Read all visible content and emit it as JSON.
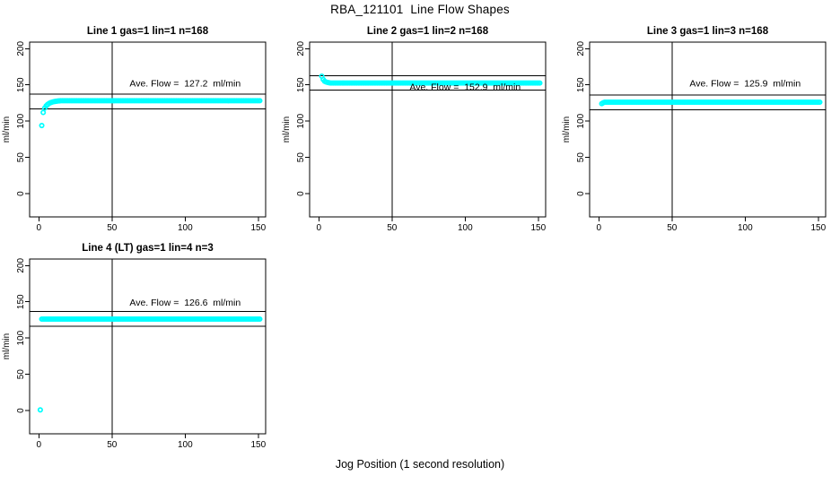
{
  "window": {
    "title": "RBA_121101  Line Flow Shapes",
    "xlabel": "Jog Position (1 second resolution)"
  },
  "colors": {
    "marker": "#00ffff",
    "axis": "#000000",
    "background": "#ffffff"
  },
  "chart_data": [
    {
      "type": "scatter",
      "title": "Line 1 gas=1 lin=1 n=168",
      "ylabel": "ml/min",
      "annotation": "Ave. Flow =  127.2  ml/min",
      "annotation_xy": [
        100,
        152
      ],
      "ave_flow_ml_min": 127.2,
      "n_points": 168,
      "marker": "open-circle",
      "ref_lines_y": [
        117.2,
        137.2
      ],
      "vline_x": 50,
      "xticks": [
        0,
        50,
        100,
        150
      ],
      "yticks": [
        0,
        50,
        100,
        150,
        200
      ],
      "xlim": [
        -6.3,
        155
      ],
      "ylim": [
        -32,
        209
      ],
      "grid": false,
      "points_initial": [
        [
          2,
          94
        ],
        [
          3,
          112
        ],
        [
          4,
          118
        ],
        [
          5,
          121
        ],
        [
          6,
          123
        ],
        [
          7,
          124.5
        ],
        [
          8,
          125.5
        ],
        [
          9,
          126.2
        ],
        [
          10,
          126.8
        ],
        [
          11,
          127.2
        ],
        [
          12,
          127.5
        ],
        [
          13,
          127.8
        ],
        [
          14,
          128
        ]
      ],
      "points_steady": {
        "x_from": 15,
        "x_to": 151,
        "step": 1,
        "y": 128.2
      }
    },
    {
      "type": "scatter",
      "title": "Line 2 gas=1 lin=2 n=168",
      "ylabel": "ml/min",
      "annotation": "Ave. Flow =  152.9  ml/min",
      "annotation_xy": [
        100,
        147
      ],
      "ave_flow_ml_min": 152.9,
      "n_points": 168,
      "marker": "open-circle",
      "ref_lines_y": [
        142.9,
        162.9
      ],
      "vline_x": 50,
      "xticks": [
        0,
        50,
        100,
        150
      ],
      "yticks": [
        0,
        50,
        100,
        150,
        200
      ],
      "xlim": [
        -6.3,
        155
      ],
      "ylim": [
        -32,
        209
      ],
      "grid": false,
      "points_initial": [
        [
          2,
          162
        ],
        [
          3,
          157.5
        ],
        [
          4,
          155
        ],
        [
          5,
          154
        ],
        [
          6,
          153.4
        ],
        [
          7,
          153
        ]
      ],
      "points_steady": {
        "x_from": 8,
        "x_to": 151,
        "step": 1,
        "y": 152.6
      }
    },
    {
      "type": "scatter",
      "title": "Line 3 gas=1 lin=3 n=168",
      "ylabel": "ml/min",
      "annotation": "Ave. Flow =  125.9  ml/min",
      "annotation_xy": [
        100,
        152
      ],
      "ave_flow_ml_min": 125.9,
      "n_points": 168,
      "marker": "open-circle",
      "ref_lines_y": [
        115.9,
        135.9
      ],
      "vline_x": 50,
      "xticks": [
        0,
        50,
        100,
        150
      ],
      "yticks": [
        0,
        50,
        100,
        150,
        200
      ],
      "xlim": [
        -6.3,
        155
      ],
      "ylim": [
        -32,
        209
      ],
      "grid": false,
      "points_initial": [
        [
          2,
          124.2
        ],
        [
          3,
          125.4
        ]
      ],
      "points_steady": {
        "x_from": 4,
        "x_to": 151,
        "step": 1,
        "y": 126.2
      }
    },
    {
      "type": "scatter",
      "title": "Line 4 (LT) gas=1 lin=4 n=3",
      "ylabel": "ml/min",
      "annotation": "Ave. Flow =  126.6  ml/min",
      "annotation_xy": [
        100,
        149
      ],
      "ave_flow_ml_min": 126.6,
      "n_points": 3,
      "marker": "open-circle",
      "ref_lines_y": [
        116.6,
        136.6
      ],
      "vline_x": 50,
      "xticks": [
        0,
        50,
        100,
        150
      ],
      "yticks": [
        0,
        50,
        100,
        150,
        200
      ],
      "xlim": [
        -6.3,
        155
      ],
      "ylim": [
        -32,
        209
      ],
      "grid": false,
      "points_initial": [
        [
          1,
          1
        ]
      ],
      "points_steady": {
        "x_from": 2,
        "x_to": 151,
        "step": 1,
        "y": 126.2
      }
    }
  ]
}
